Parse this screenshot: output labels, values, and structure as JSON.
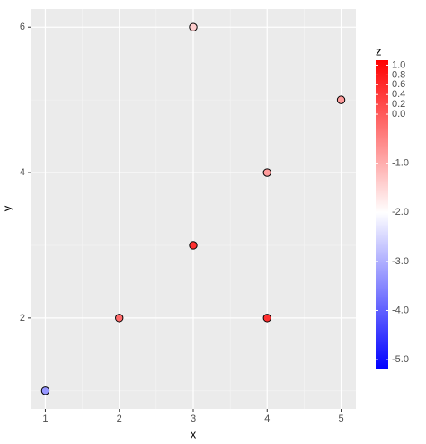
{
  "chart_data": {
    "type": "scatter",
    "xlabel": "x",
    "ylabel": "y",
    "legend_title": "z",
    "x": [
      1,
      2,
      3,
      3,
      4,
      4,
      5
    ],
    "y": [
      1,
      2,
      6,
      3,
      4,
      2,
      5
    ],
    "z": [
      -3.3,
      -0.2,
      -1.4,
      0.5,
      -0.8,
      0.5,
      -0.8
    ],
    "xlim": [
      0.8,
      5.2
    ],
    "ylim": [
      0.75,
      6.25
    ],
    "xticks": [
      1,
      2,
      3,
      4,
      5
    ],
    "yticks": [
      2,
      4,
      6
    ],
    "grid": true,
    "colorscale": {
      "low": "#0000ff",
      "mid": "#ffffff",
      "high": "#ff0000",
      "midpoint": -2
    },
    "zlim": [
      -5.2,
      1.1
    ],
    "zticks": [
      {
        "value": 1,
        "label": "1.0"
      },
      {
        "value": 0.8,
        "label": "0.8"
      },
      {
        "value": 0.6,
        "label": "0.6"
      },
      {
        "value": 0.4,
        "label": "0.4"
      },
      {
        "value": 0.2,
        "label": "0.2"
      },
      {
        "value": 0,
        "label": "0.0"
      },
      {
        "value": -1,
        "label": "-1.0"
      },
      {
        "value": -2,
        "label": "-2.0"
      },
      {
        "value": -3,
        "label": "-3.0"
      },
      {
        "value": -4,
        "label": "-4.0"
      },
      {
        "value": -5,
        "label": "-5.0"
      }
    ]
  }
}
